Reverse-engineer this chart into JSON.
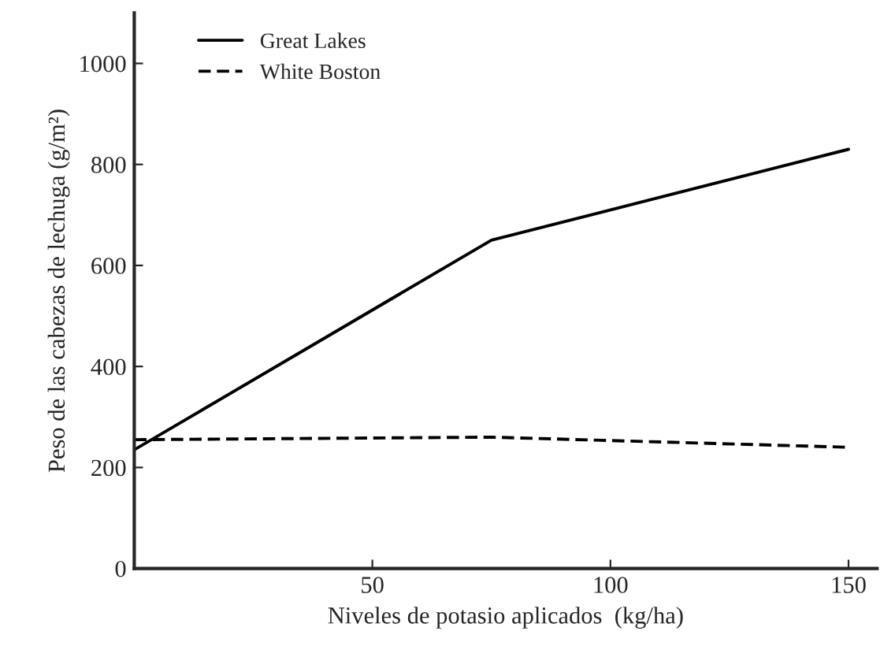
{
  "chart_data": {
    "type": "line",
    "xlabel": "Niveles de potasio aplicados  (kg/ha)",
    "ylabel": "Peso de las cabezas de lechuga (g/m²)",
    "x": [
      0,
      75,
      150
    ],
    "series": [
      {
        "name": "Great Lakes",
        "color": "#000000",
        "line_style": "solid",
        "values": [
          235,
          650,
          830
        ]
      },
      {
        "name": "White Boston",
        "color": "#000000",
        "line_style": "dashed",
        "values": [
          255,
          260,
          240
        ]
      }
    ],
    "xlim": [
      0,
      156
    ],
    "ylim": [
      0,
      1100
    ],
    "xticks": [
      50,
      100,
      150
    ],
    "yticks": [
      0,
      200,
      400,
      600,
      800,
      1000
    ],
    "grid": false,
    "legend": "top left",
    "marker": "none"
  }
}
